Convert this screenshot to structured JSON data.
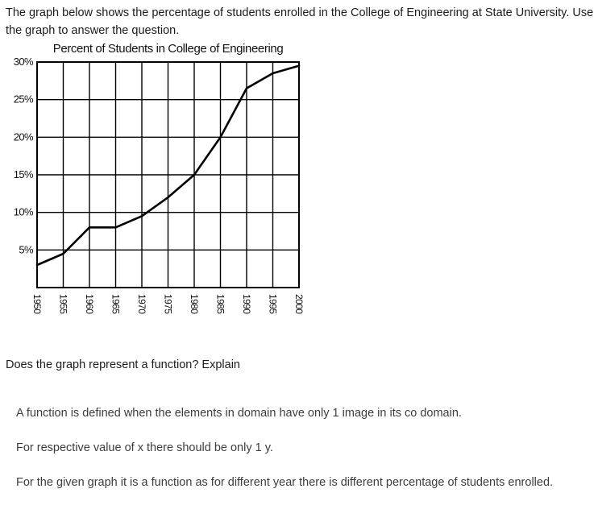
{
  "page": {
    "intro_line": "The graph below shows the percentage of students enrolled in the College of Engineering at State University. Use the graph to answer the question.",
    "question": "Does the graph represent a function? Explain",
    "answer_lines": [
      "A function is defined when the elements in domain have only 1 image in its co domain.",
      "For respective value of x there should be only 1 y.",
      "For the given graph it is a function as for different year there is different percentage of students enrolled."
    ]
  },
  "chart_data": {
    "type": "line",
    "title": "Percent of Students in College of Engineering",
    "x": [
      1950,
      1955,
      1960,
      1965,
      1970,
      1975,
      1980,
      1985,
      1990,
      1995,
      2000
    ],
    "values": [
      3,
      4.5,
      8,
      8,
      9.5,
      12,
      15,
      20,
      26.5,
      28.5,
      29.5
    ],
    "xlabel": "",
    "ylabel": "",
    "xtick_labels": [
      "1950",
      "1955",
      "1960",
      "1965",
      "1970",
      "1975",
      "1980",
      "1985",
      "1990",
      "1995",
      "2000"
    ],
    "ytick_labels": [
      "5%",
      "10%",
      "15%",
      "20%",
      "25%",
      "30%"
    ],
    "xlim": [
      1950,
      2000
    ],
    "ylim": [
      0,
      30
    ],
    "grid": true,
    "legend": false,
    "line_color": "#000000",
    "grid_color": "#000000"
  }
}
